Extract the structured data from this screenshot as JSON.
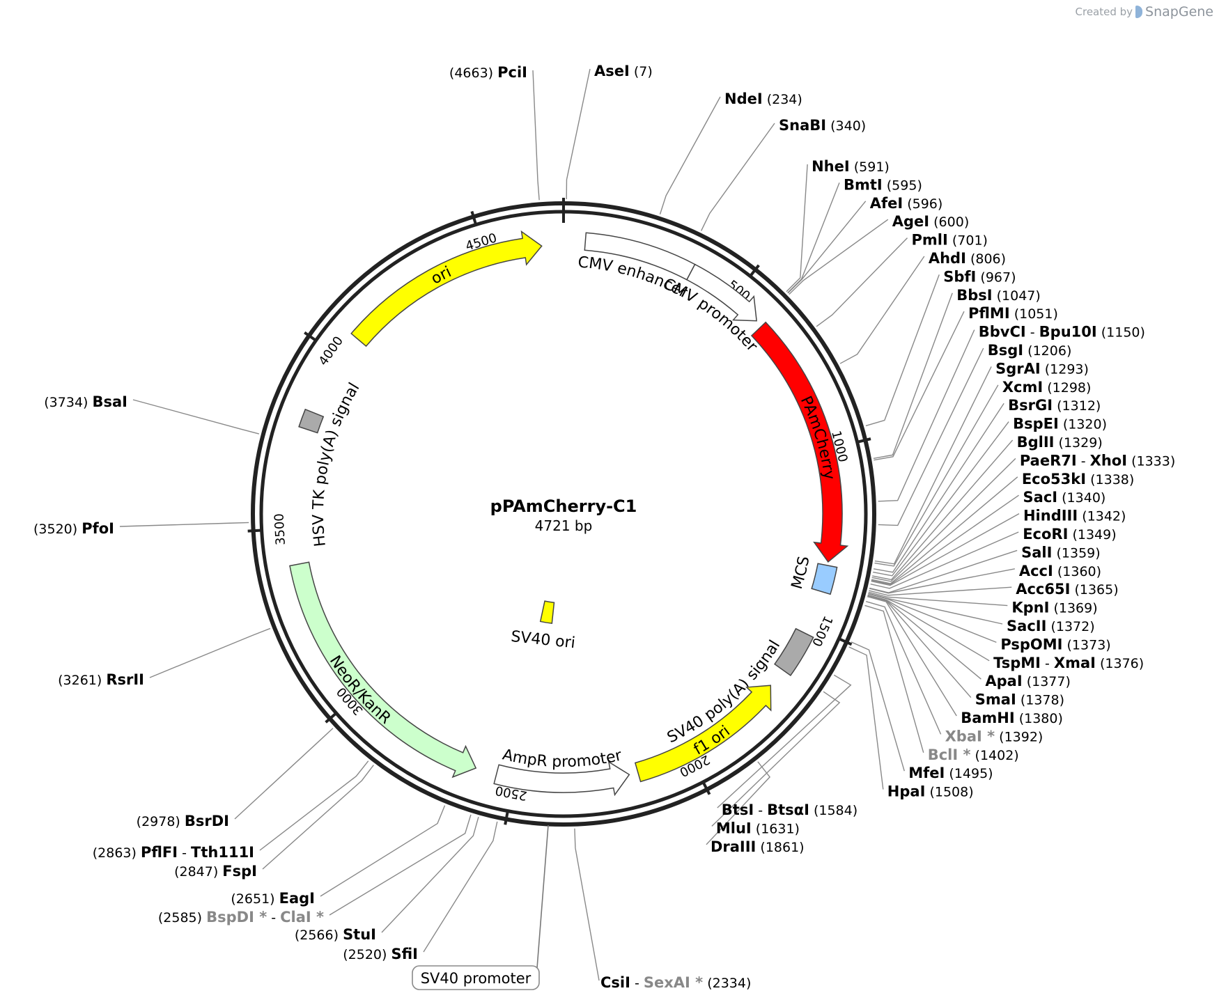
{
  "brand": {
    "created_by": "Created by",
    "name": "SnapGene"
  },
  "plasmid": {
    "name": "pPAmCherry-C1",
    "length_label": "4721 bp",
    "length": 4721
  },
  "ticks": [
    {
      "pos": 500,
      "label": "500"
    },
    {
      "pos": 1000,
      "label": "1000"
    },
    {
      "pos": 1500,
      "label": "1500"
    },
    {
      "pos": 2000,
      "label": "2000"
    },
    {
      "pos": 2500,
      "label": "2500"
    },
    {
      "pos": 3000,
      "label": "3000"
    },
    {
      "pos": 3500,
      "label": "3500"
    },
    {
      "pos": 4000,
      "label": "4000"
    },
    {
      "pos": 4500,
      "label": "4500"
    }
  ],
  "features": [
    {
      "id": "cmv-enhancer",
      "label": "CMV enhancer",
      "start": 60,
      "end": 364,
      "color": "#ffffff",
      "arrow": "none"
    },
    {
      "id": "cmv-promoter",
      "label": "CMV promoter",
      "start": 364,
      "end": 590,
      "color": "#ffffff",
      "arrow": "cw"
    },
    {
      "id": "pamcherry",
      "label": "PAmCherry",
      "start": 610,
      "end": 1315,
      "color": "#ff0000",
      "arrow": "cw",
      "label_color": "#ffffff"
    },
    {
      "id": "mcs",
      "label": "MCS",
      "start": 1325,
      "end": 1400,
      "color": "#99ccff",
      "arrow": "box"
    },
    {
      "id": "sv40-polya",
      "label": "SV40 poly(A) signal",
      "start": 1525,
      "end": 1645,
      "color": "#aaaaaa",
      "arrow": "box"
    },
    {
      "id": "f1-ori",
      "label": "f1 ori",
      "start": 1700,
      "end": 2150,
      "color": "#ffff00",
      "arrow": "ccw"
    },
    {
      "id": "ampr-promoter",
      "label": "AmpR promoter",
      "start": 2175,
      "end": 2550,
      "color": "#ffffff",
      "arrow": "ccw"
    },
    {
      "id": "sv40-ori",
      "label": "SV40 ori",
      "start": 2440,
      "end": 2520,
      "color": "#ffff00",
      "arrow": "box"
    },
    {
      "id": "neor-kanr",
      "label": "NeoR/KanR",
      "start": 2610,
      "end": 3400,
      "color": "#ccffcc",
      "arrow": "ccw"
    },
    {
      "id": "hsv-tk-polya",
      "label": "HSV TK poly(A) signal",
      "start": 3780,
      "end": 3830,
      "color": "#aaaaaa",
      "arrow": "box"
    },
    {
      "id": "ori",
      "label": "ori",
      "start": 4070,
      "end": 4660,
      "color": "#ffff00",
      "arrow": "cw"
    }
  ],
  "sites": [
    {
      "names": [
        "AseI"
      ],
      "pos_label": "(7)",
      "pos": 7,
      "side": "right"
    },
    {
      "names": [
        "NdeI"
      ],
      "pos_label": "(234)",
      "pos": 234,
      "side": "right"
    },
    {
      "names": [
        "SnaBI"
      ],
      "pos_label": "(340)",
      "pos": 340,
      "side": "right"
    },
    {
      "names": [
        "NheI"
      ],
      "pos_label": "(591)",
      "pos": 591,
      "side": "right"
    },
    {
      "names": [
        "BmtI"
      ],
      "pos_label": "(595)",
      "pos": 595,
      "side": "right"
    },
    {
      "names": [
        "AfeI"
      ],
      "pos_label": "(596)",
      "pos": 596,
      "side": "right"
    },
    {
      "names": [
        "AgeI"
      ],
      "pos_label": "(600)",
      "pos": 600,
      "side": "right"
    },
    {
      "names": [
        "PmlI"
      ],
      "pos_label": "(701)",
      "pos": 701,
      "side": "right"
    },
    {
      "names": [
        "AhdI"
      ],
      "pos_label": "(806)",
      "pos": 806,
      "side": "right"
    },
    {
      "names": [
        "SbfI"
      ],
      "pos_label": "(967)",
      "pos": 967,
      "side": "right"
    },
    {
      "names": [
        "BbsI"
      ],
      "pos_label": "(1047)",
      "pos": 1047,
      "side": "right"
    },
    {
      "names": [
        "PflMI"
      ],
      "pos_label": "(1051)",
      "pos": 1051,
      "side": "right"
    },
    {
      "names": [
        "BbvCI",
        "Bpu10I"
      ],
      "pos_label": "(1150)",
      "pos": 1150,
      "side": "right"
    },
    {
      "names": [
        "BsgI"
      ],
      "pos_label": "(1206)",
      "pos": 1206,
      "side": "right"
    },
    {
      "names": [
        "SgrAI"
      ],
      "pos_label": "(1293)",
      "pos": 1293,
      "side": "right"
    },
    {
      "names": [
        "XcmI"
      ],
      "pos_label": "(1298)",
      "pos": 1298,
      "side": "right"
    },
    {
      "names": [
        "BsrGI"
      ],
      "pos_label": "(1312)",
      "pos": 1312,
      "side": "right"
    },
    {
      "names": [
        "BspEI"
      ],
      "pos_label": "(1320)",
      "pos": 1320,
      "side": "right"
    },
    {
      "names": [
        "BglII"
      ],
      "pos_label": "(1329)",
      "pos": 1329,
      "side": "right"
    },
    {
      "names": [
        "PaeR7I",
        "XhoI"
      ],
      "pos_label": "(1333)",
      "pos": 1333,
      "side": "right"
    },
    {
      "names": [
        "Eco53kI"
      ],
      "pos_label": "(1338)",
      "pos": 1338,
      "side": "right"
    },
    {
      "names": [
        "SacI"
      ],
      "pos_label": "(1340)",
      "pos": 1340,
      "side": "right"
    },
    {
      "names": [
        "HindIII"
      ],
      "pos_label": "(1342)",
      "pos": 1342,
      "side": "right"
    },
    {
      "names": [
        "EcoRI"
      ],
      "pos_label": "(1349)",
      "pos": 1349,
      "side": "right"
    },
    {
      "names": [
        "SalI"
      ],
      "pos_label": "(1359)",
      "pos": 1359,
      "side": "right"
    },
    {
      "names": [
        "AccI"
      ],
      "pos_label": "(1360)",
      "pos": 1360,
      "side": "right"
    },
    {
      "names": [
        "Acc65I"
      ],
      "pos_label": "(1365)",
      "pos": 1365,
      "side": "right"
    },
    {
      "names": [
        "KpnI"
      ],
      "pos_label": "(1369)",
      "pos": 1369,
      "side": "right"
    },
    {
      "names": [
        "SacII"
      ],
      "pos_label": "(1372)",
      "pos": 1372,
      "side": "right"
    },
    {
      "names": [
        "PspOMI"
      ],
      "pos_label": "(1373)",
      "pos": 1373,
      "side": "right"
    },
    {
      "names": [
        "TspMI",
        "XmaI"
      ],
      "pos_label": "(1376)",
      "pos": 1376,
      "side": "right"
    },
    {
      "names": [
        "ApaI"
      ],
      "pos_label": "(1377)",
      "pos": 1377,
      "side": "right"
    },
    {
      "names": [
        "SmaI"
      ],
      "pos_label": "(1378)",
      "pos": 1378,
      "side": "right"
    },
    {
      "names": [
        "BamHI"
      ],
      "pos_label": "(1380)",
      "pos": 1380,
      "side": "right"
    },
    {
      "names": [
        "XbaI *"
      ],
      "pos_label": "(1392)",
      "pos": 1392,
      "side": "right",
      "gray": true
    },
    {
      "names": [
        "BclI *"
      ],
      "pos_label": "(1402)",
      "pos": 1402,
      "side": "right",
      "gray": true
    },
    {
      "names": [
        "MfeI"
      ],
      "pos_label": "(1495)",
      "pos": 1495,
      "side": "right"
    },
    {
      "names": [
        "HpaI"
      ],
      "pos_label": "(1508)",
      "pos": 1508,
      "side": "right"
    },
    {
      "names": [
        "BtsI",
        "BtsαI"
      ],
      "pos_label": "(1584)",
      "pos": 1584,
      "side": "right"
    },
    {
      "names": [
        "MluI"
      ],
      "pos_label": "(1631)",
      "pos": 1631,
      "side": "right"
    },
    {
      "names": [
        "DraIII"
      ],
      "pos_label": "(1861)",
      "pos": 1861,
      "side": "right"
    },
    {
      "names": [
        "CsiI",
        "SexAI *"
      ],
      "pos_label": "(2334)",
      "pos": 2334,
      "side": "right",
      "gray_second": true
    },
    {
      "names": [
        "SfiI"
      ],
      "pos_label": "(2520)",
      "pos": 2520,
      "side": "left"
    },
    {
      "names": [
        "StuI"
      ],
      "pos_label": "(2566)",
      "pos": 2566,
      "side": "left"
    },
    {
      "names": [
        "BspDI *",
        "ClaI *"
      ],
      "pos_label": "(2585)",
      "pos": 2585,
      "side": "left",
      "gray": true
    },
    {
      "names": [
        "EagI"
      ],
      "pos_label": "(2651)",
      "pos": 2651,
      "side": "left"
    },
    {
      "names": [
        "FspI"
      ],
      "pos_label": "(2847)",
      "pos": 2847,
      "side": "left"
    },
    {
      "names": [
        "PflFI",
        "Tth111I"
      ],
      "pos_label": "(2863)",
      "pos": 2863,
      "side": "left"
    },
    {
      "names": [
        "BsrDI"
      ],
      "pos_label": "(2978)",
      "pos": 2978,
      "side": "left"
    },
    {
      "names": [
        "RsrII"
      ],
      "pos_label": "(3261)",
      "pos": 3261,
      "side": "left"
    },
    {
      "names": [
        "PfoI"
      ],
      "pos_label": "(3520)",
      "pos": 3520,
      "side": "left"
    },
    {
      "names": [
        "BsaI"
      ],
      "pos_label": "(3734)",
      "pos": 3734,
      "side": "left"
    },
    {
      "names": [
        "PciI"
      ],
      "pos_label": "(4663)",
      "pos": 4663,
      "side": "left"
    }
  ],
  "callout": {
    "label": "SV40 promoter"
  }
}
